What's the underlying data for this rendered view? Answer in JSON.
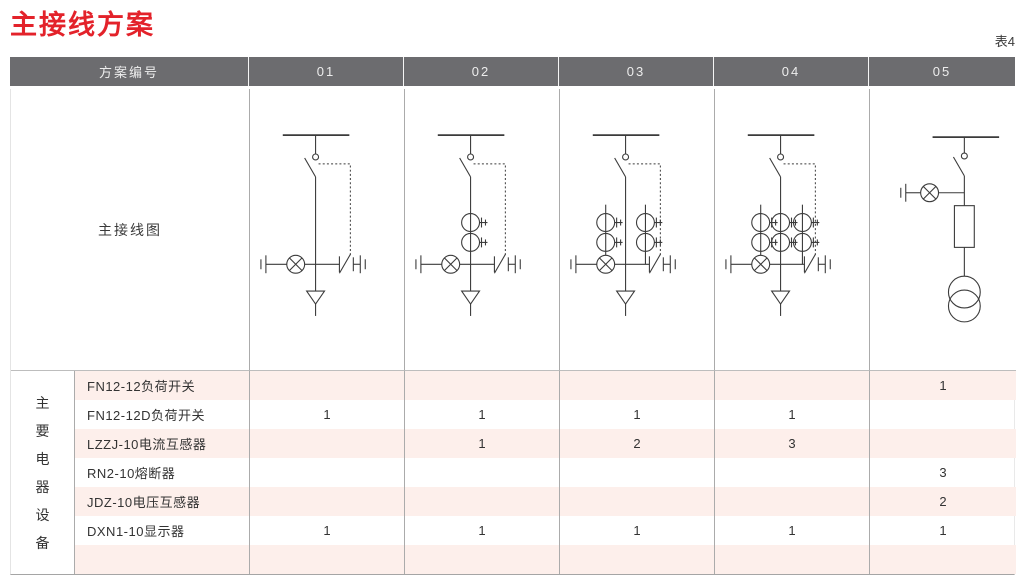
{
  "page": {
    "title": "主接线方案",
    "table_label": "表4"
  },
  "colors": {
    "title_red": "#e3222a",
    "header_bg": "#6c6c6f",
    "header_text": "#ededed",
    "row_pink": "#fdefeb",
    "grid_line": "#ababab",
    "diagram_line": "#3b3b3b"
  },
  "table": {
    "header": {
      "label": "方案编号",
      "schemes": [
        "01",
        "02",
        "03",
        "04",
        "05"
      ]
    },
    "diagram_row_label": "主接线图",
    "group_label": "主要电器设备",
    "group_label_chars": [
      "主",
      "要",
      "电",
      "器",
      "设",
      "备"
    ],
    "diagrams": [
      {
        "scheme": "01",
        "type": "load-switch-feeder-with-earthing-switch",
        "current_transformers": 0
      },
      {
        "scheme": "02",
        "type": "load-switch-feeder-with-earthing-switch",
        "current_transformers": 1
      },
      {
        "scheme": "03",
        "type": "load-switch-feeder-with-earthing-switch",
        "current_transformers": 2
      },
      {
        "scheme": "04",
        "type": "load-switch-feeder-with-earthing-switch",
        "current_transformers": 3
      },
      {
        "scheme": "05",
        "type": "load-switch-fuse-voltage-transformer",
        "current_transformers": 0
      }
    ],
    "rows": [
      {
        "name": "FN12-12负荷开关",
        "values": [
          "",
          "",
          "",
          "",
          "1"
        ]
      },
      {
        "name": "FN12-12D负荷开关",
        "values": [
          "1",
          "1",
          "1",
          "1",
          ""
        ]
      },
      {
        "name": "LZZJ-10电流互感器",
        "values": [
          "",
          "1",
          "2",
          "3",
          ""
        ]
      },
      {
        "name": "RN2-10熔断器",
        "values": [
          "",
          "",
          "",
          "",
          "3"
        ]
      },
      {
        "name": "JDZ-10电压互感器",
        "values": [
          "",
          "",
          "",
          "",
          "2"
        ]
      },
      {
        "name": "DXN1-10显示器",
        "values": [
          "1",
          "1",
          "1",
          "1",
          "1"
        ]
      },
      {
        "name": "",
        "values": [
          "",
          "",
          "",
          "",
          ""
        ]
      }
    ]
  }
}
